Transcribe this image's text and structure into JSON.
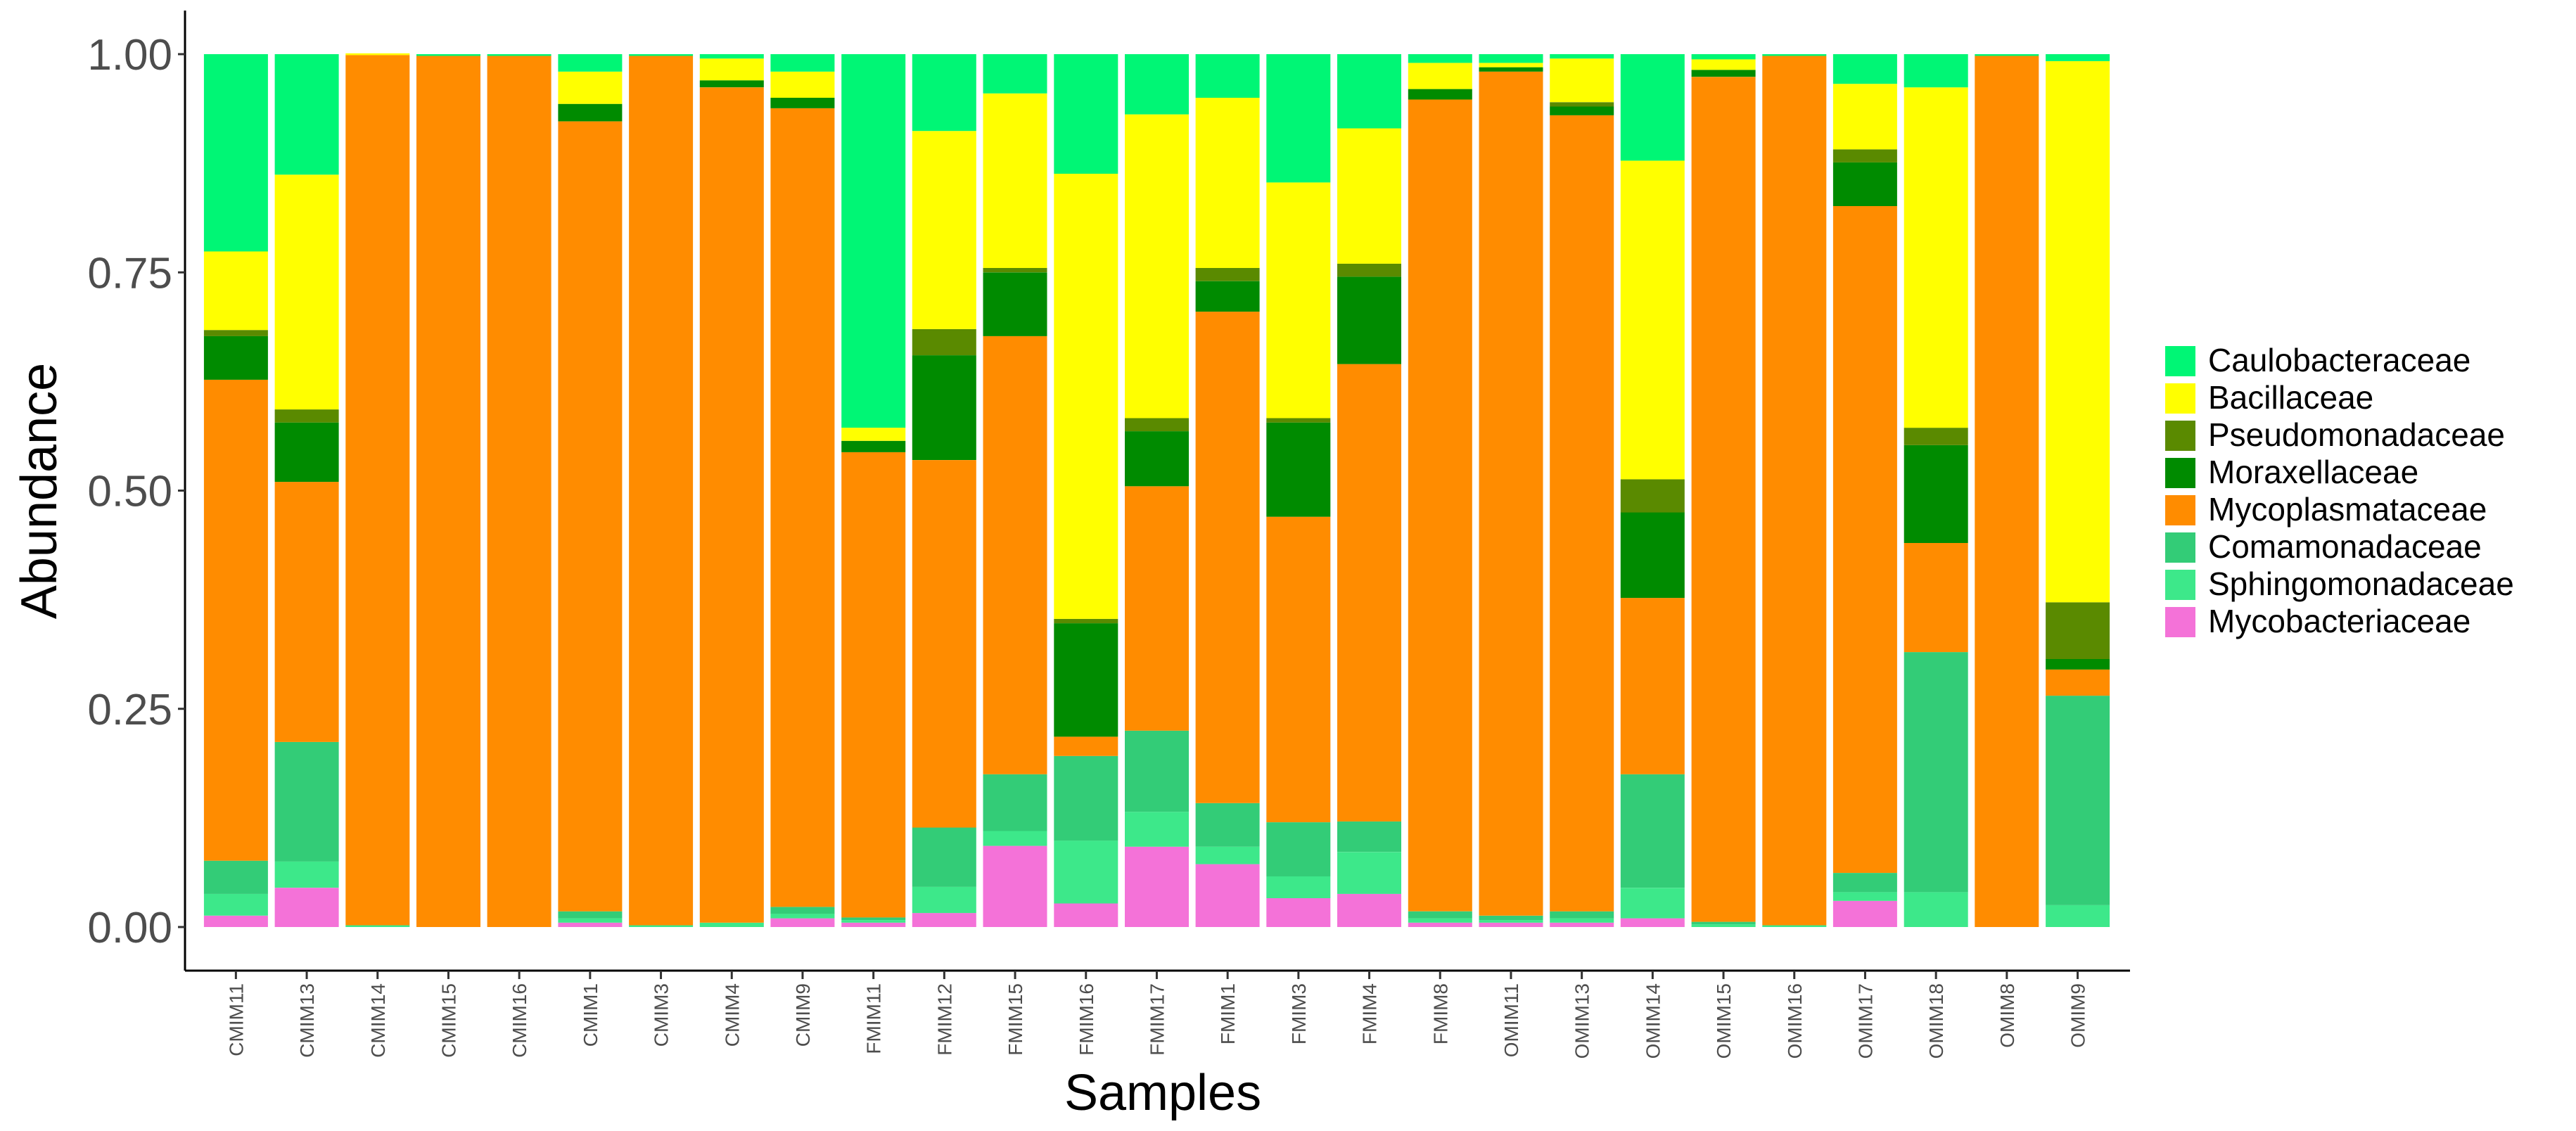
{
  "chart_data": {
    "type": "bar",
    "stacked": true,
    "title": "",
    "xlabel": "Samples",
    "ylabel": "Abundance",
    "ylim": [
      0,
      1
    ],
    "yticks": [
      "0.00",
      "0.25",
      "0.50",
      "0.75",
      "1.00"
    ],
    "categories": [
      "CMIM11",
      "CMIM13",
      "CMIM14",
      "CMIM15",
      "CMIM16",
      "CMIM1",
      "CMIM3",
      "CMIM4",
      "CMIM9",
      "FMIM11",
      "FMIM12",
      "FMIM15",
      "FMIM16",
      "FMIM17",
      "FMIM1",
      "FMIM3",
      "FMIM4",
      "FMIM8",
      "OMIM11",
      "OMIM13",
      "OMIM14",
      "OMIM15",
      "OMIM16",
      "OMIM17",
      "OMIM18",
      "OMIM8",
      "OMIM9"
    ],
    "legend_position": "right",
    "series": [
      {
        "name": "Mycobacteriaceae",
        "color": "#f472d8",
        "values": [
          0.013,
          0.045,
          0,
          0,
          0,
          0.005,
          0,
          0,
          0.01,
          0.005,
          0.016,
          0.093,
          0.027,
          0.092,
          0.072,
          0.033,
          0.038,
          0.005,
          0.005,
          0.005,
          0.01,
          0,
          0,
          0.03,
          0,
          0,
          0
        ]
      },
      {
        "name": "Sphingomonadaceae",
        "color": "#3de88a",
        "values": [
          0.025,
          0.03,
          0.002,
          0,
          0,
          0.005,
          0.002,
          0.005,
          0.005,
          0.003,
          0.03,
          0.017,
          0.072,
          0.04,
          0.02,
          0.025,
          0.048,
          0.005,
          0.003,
          0.005,
          0.035,
          0.003,
          0.002,
          0.01,
          0.04,
          0,
          0.025
        ]
      },
      {
        "name": "Comamonadaceae",
        "color": "#33cc77",
        "values": [
          0.038,
          0.137,
          0,
          0,
          0,
          0.008,
          0,
          0,
          0.008,
          0.003,
          0.068,
          0.065,
          0.097,
          0.093,
          0.05,
          0.062,
          0.035,
          0.008,
          0.005,
          0.008,
          0.13,
          0.003,
          0,
          0.022,
          0.275,
          0,
          0.24
        ]
      },
      {
        "name": "Mycoplasmataceae",
        "color": "#ff8c00",
        "values": [
          0.551,
          0.298,
          0.997,
          0.998,
          0.998,
          0.905,
          0.996,
          0.957,
          0.915,
          0.533,
          0.421,
          0.502,
          0.022,
          0.28,
          0.563,
          0.35,
          0.524,
          0.93,
          0.967,
          0.912,
          0.202,
          0.968,
          0.996,
          0.764,
          0.125,
          0.998,
          0.03
        ]
      },
      {
        "name": "Moraxellaceae",
        "color": "#008b00",
        "values": [
          0.05,
          0.068,
          0,
          0,
          0,
          0.02,
          0,
          0.008,
          0.012,
          0.013,
          0.12,
          0.073,
          0.13,
          0.063,
          0.035,
          0.108,
          0.1,
          0.012,
          0.005,
          0.01,
          0.098,
          0.008,
          0,
          0.05,
          0.112,
          0,
          0.012
        ]
      },
      {
        "name": "Pseudomonadaceae",
        "color": "#5a8a00",
        "values": [
          0.007,
          0.015,
          0,
          0,
          0,
          0,
          0,
          0,
          0,
          0,
          0.03,
          0.005,
          0.005,
          0.015,
          0.015,
          0.005,
          0.015,
          0,
          0,
          0.005,
          0.038,
          0,
          0,
          0.015,
          0.02,
          0,
          0.065
        ]
      },
      {
        "name": "Bacillaceae",
        "color": "#ffff00",
        "values": [
          0.09,
          0.269,
          0.002,
          0,
          0,
          0.037,
          0,
          0.025,
          0.03,
          0.015,
          0.227,
          0.2,
          0.51,
          0.348,
          0.195,
          0.27,
          0.155,
          0.03,
          0.005,
          0.05,
          0.365,
          0.012,
          0,
          0.075,
          0.39,
          0,
          0.62
        ]
      },
      {
        "name": "Caulobacteraceae",
        "color": "#00f675",
        "values": [
          0.226,
          0.138,
          0,
          0.002,
          0.002,
          0.02,
          0.002,
          0.005,
          0.02,
          0.428,
          0.088,
          0.045,
          0.137,
          0.069,
          0.05,
          0.147,
          0.085,
          0.01,
          0.01,
          0.005,
          0.122,
          0.006,
          0.002,
          0.034,
          0.038,
          0.002,
          0.008
        ]
      }
    ]
  }
}
